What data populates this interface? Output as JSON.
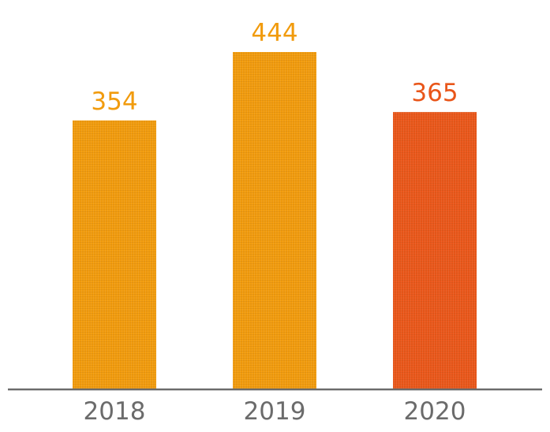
{
  "chart_data": {
    "type": "bar",
    "categories": [
      "2018",
      "2019",
      "2020"
    ],
    "values": [
      354,
      444,
      365
    ],
    "data_labels": [
      "354",
      "444",
      "365"
    ],
    "bar_colors": [
      "#F19B0D",
      "#F19B0D",
      "#E9561A"
    ],
    "label_colors": [
      "#F19B0D",
      "#F19B0D",
      "#E9561A"
    ],
    "baseline_color": "#6b6b6b",
    "tick_label_color": "#6b6b6b",
    "ylim": [
      0,
      444
    ],
    "grid": false,
    "legend": "none",
    "title": "",
    "xlabel": "",
    "ylabel": ""
  }
}
